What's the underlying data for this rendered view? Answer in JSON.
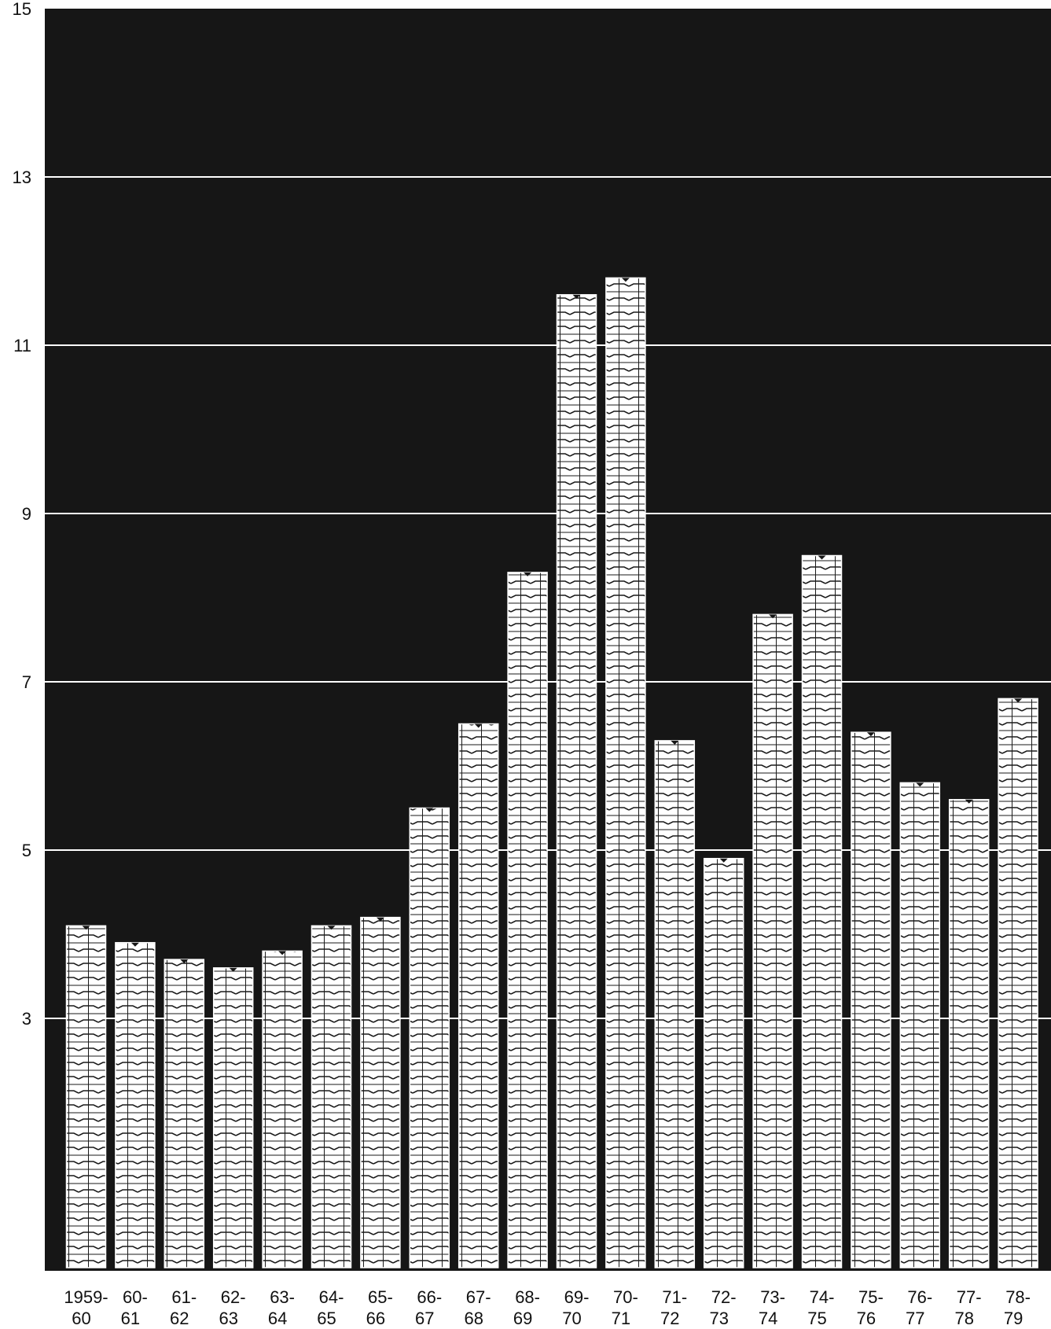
{
  "chart_data": {
    "type": "bar",
    "title": "",
    "xlabel": "",
    "ylabel": "",
    "categories": [
      "1959-60",
      "60-61",
      "61-62",
      "62-63",
      "63-64",
      "64-65",
      "65-66",
      "66-67",
      "67-68",
      "68-69",
      "69-70",
      "70-71",
      "71-72",
      "72-73",
      "73-74",
      "74-75",
      "75-76",
      "76-77",
      "77-78",
      "78-79"
    ],
    "category_lines": [
      [
        "1959-",
        "60"
      ],
      [
        "60-",
        "61"
      ],
      [
        "61-",
        "62"
      ],
      [
        "62-",
        "63"
      ],
      [
        "63-",
        "64"
      ],
      [
        "64-",
        "65"
      ],
      [
        "65-",
        "66"
      ],
      [
        "66-",
        "67"
      ],
      [
        "67-",
        "68"
      ],
      [
        "68-",
        "69"
      ],
      [
        "69-",
        "70"
      ],
      [
        "70-",
        "71"
      ],
      [
        "71-",
        "72"
      ],
      [
        "72-",
        "73"
      ],
      [
        "73-",
        "74"
      ],
      [
        "74-",
        "75"
      ],
      [
        "75-",
        "76"
      ],
      [
        "76-",
        "77"
      ],
      [
        "77-",
        "78"
      ],
      [
        "78-",
        "79"
      ]
    ],
    "values": [
      4.1,
      3.9,
      3.7,
      3.6,
      3.8,
      4.1,
      4.2,
      5.5,
      6.5,
      8.3,
      11.6,
      11.8,
      6.3,
      4.9,
      7.8,
      8.5,
      6.4,
      5.8,
      5.6,
      6.8
    ],
    "ylim": [
      0,
      15
    ],
    "yticks": [
      "3",
      "5",
      "7",
      "9",
      "11",
      "13",
      "15"
    ],
    "grid": true,
    "legend": "none"
  },
  "colors": {
    "plot_background": "#161616",
    "bar_fill": "#ffffff",
    "bar_stripe": "#1a1a1a",
    "gridline": "#ffffff",
    "text": "#111111"
  }
}
